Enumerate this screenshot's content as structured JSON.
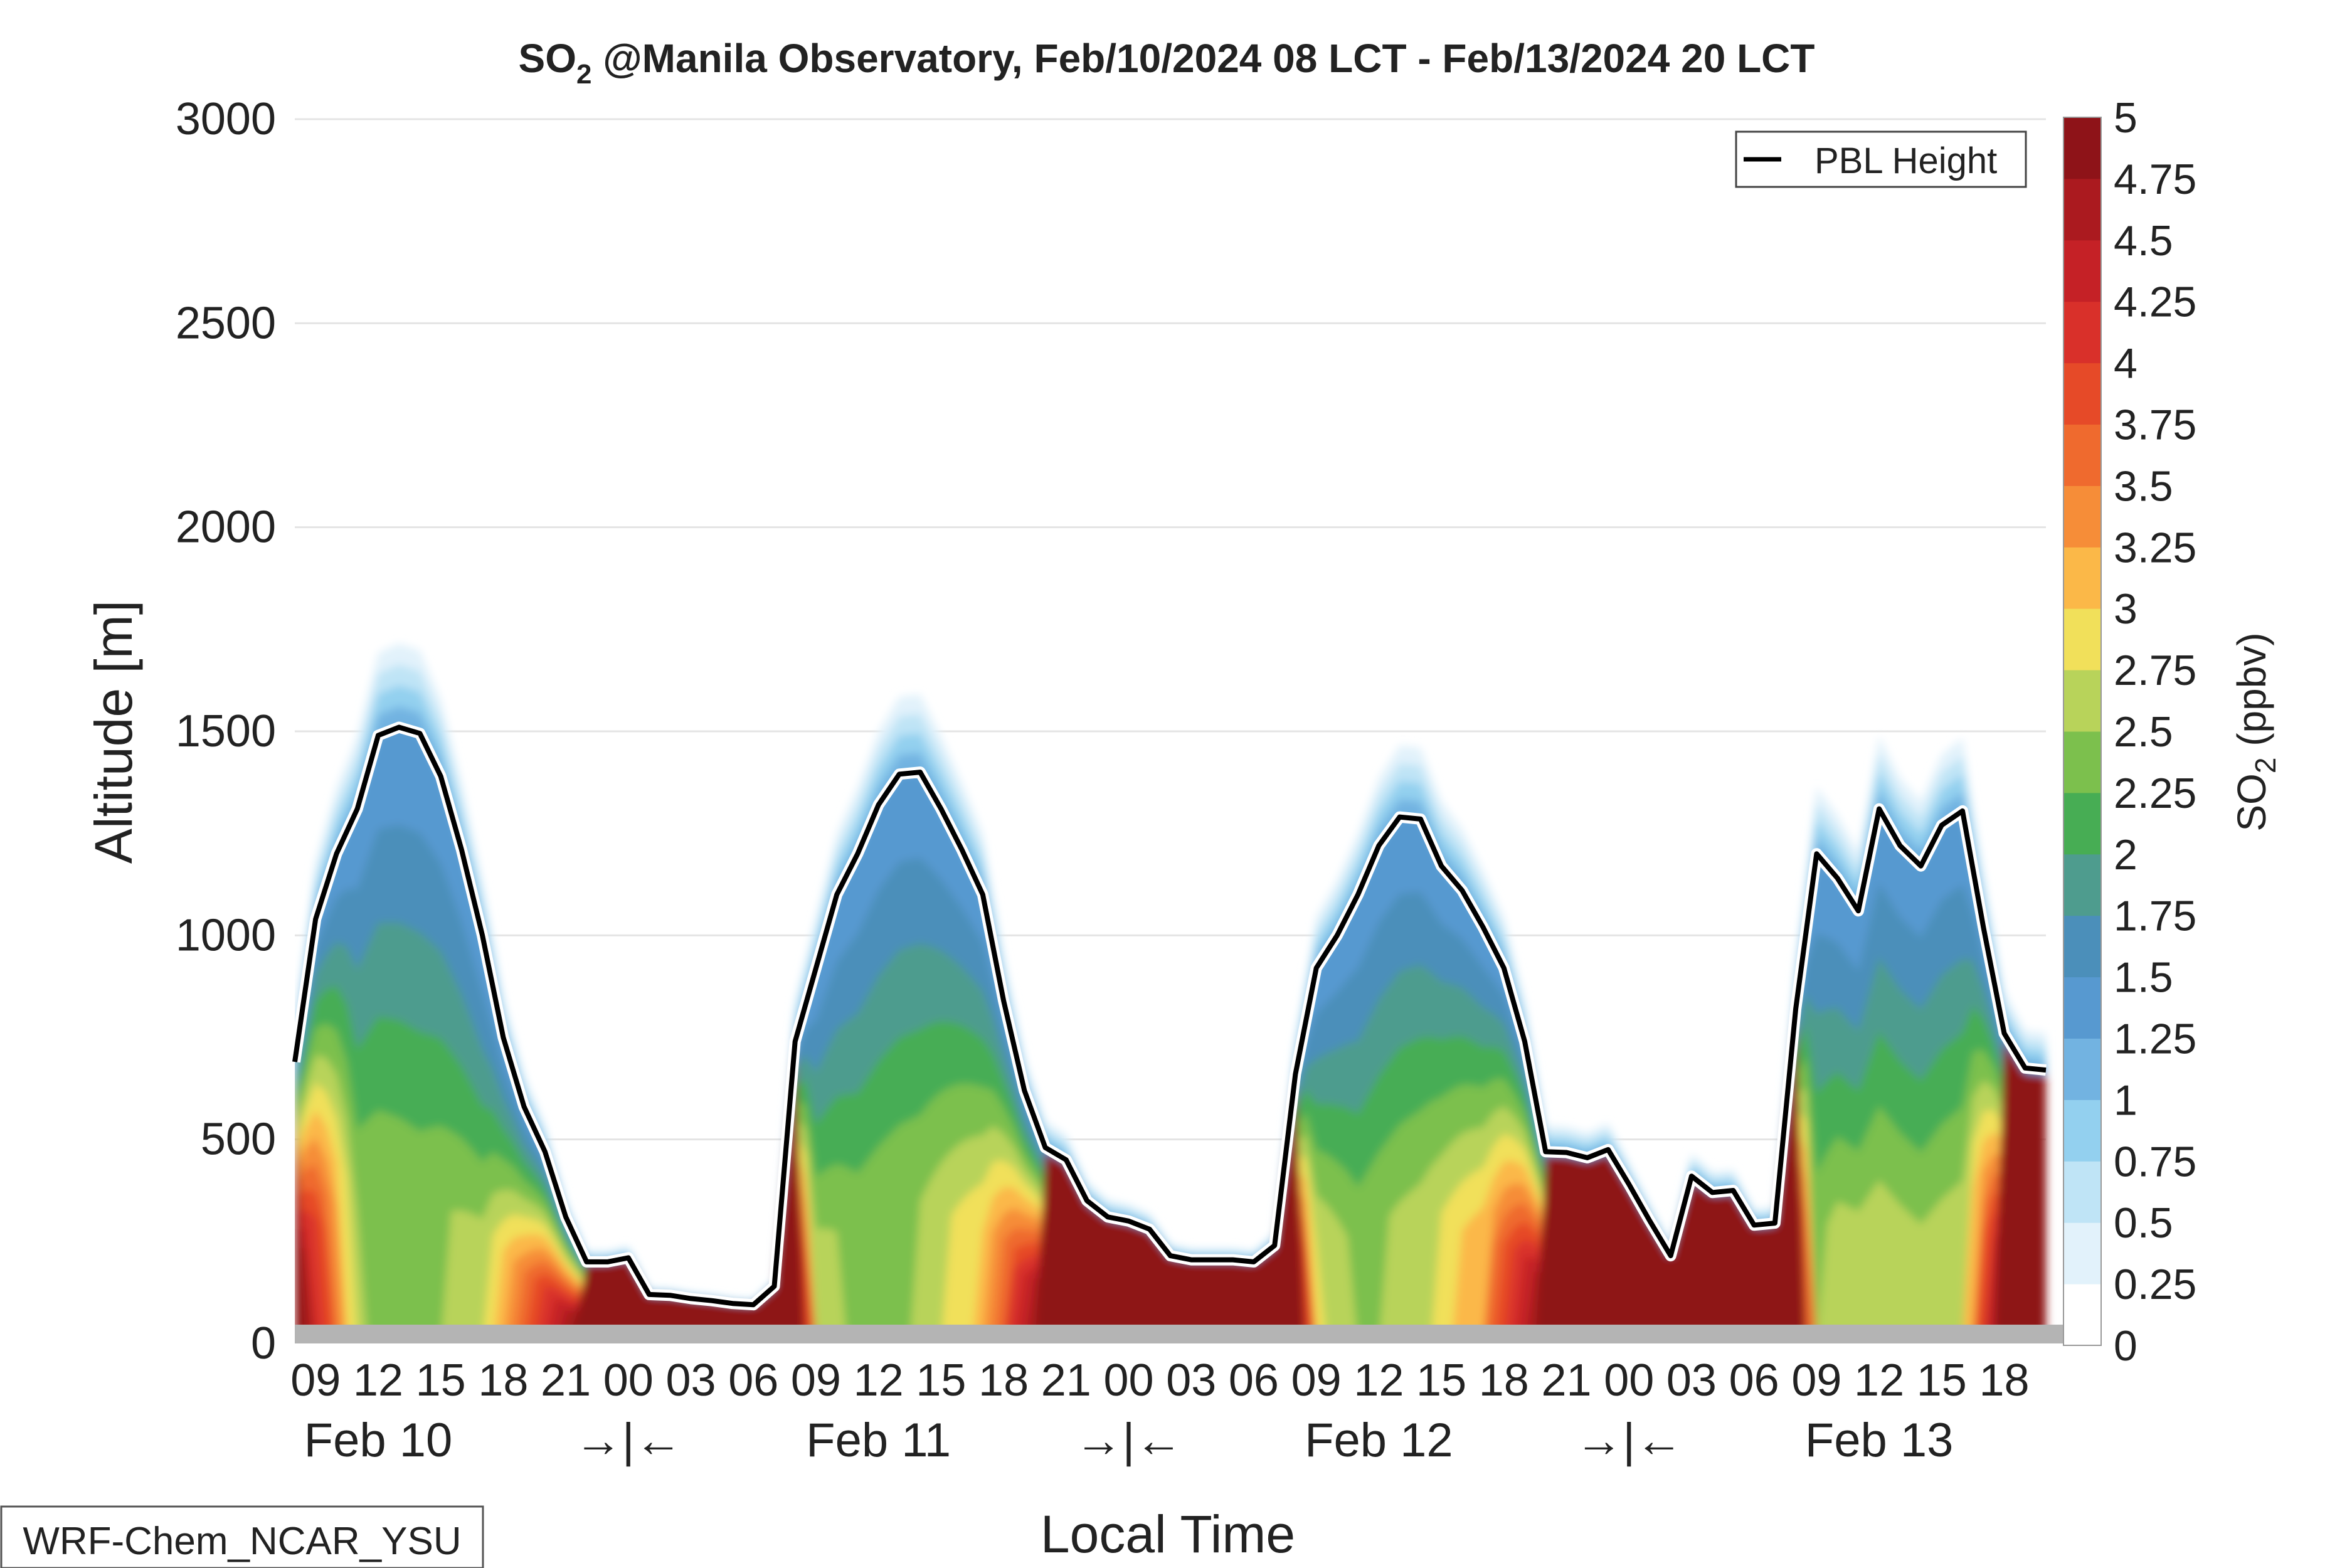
{
  "chart_data": {
    "type": "heatmap",
    "title_main": "SO",
    "title_sub": "2",
    "title_rest": " @Manila Observatory, Feb/10/2024 08 LCT - Feb/13/2024 20 LCT",
    "xlabel": "Local Time",
    "ylabel": "Altitude [m]",
    "ylim": [
      0,
      3000
    ],
    "y_ticks": [
      "0",
      "500",
      "1000",
      "1500",
      "2000",
      "2500",
      "3000"
    ],
    "x_hour_ticks": [
      "09",
      "12",
      "15",
      "18",
      "21",
      "00",
      "03",
      "06",
      "09",
      "12",
      "15",
      "18",
      "21",
      "00",
      "03",
      "06",
      "09",
      "12",
      "15",
      "18",
      "21",
      "00",
      "03",
      "06",
      "09",
      "12",
      "15",
      "18"
    ],
    "x_day_labels": [
      {
        "label": "Feb 10",
        "hour": 12
      },
      {
        "label": "→|←",
        "hour": 24
      },
      {
        "label": "Feb 11",
        "hour": 36
      },
      {
        "label": "→|←",
        "hour": 48
      },
      {
        "label": "Feb 12",
        "hour": 60
      },
      {
        "label": "→|←",
        "hour": 72
      },
      {
        "label": "Feb 13",
        "hour": 84
      }
    ],
    "x_range_hours": [
      8,
      92
    ],
    "colorbar": {
      "label_main": "SO",
      "label_sub": "2",
      "label_rest": " (ppbv)",
      "ticks": [
        "0",
        "0.25",
        "0.5",
        "0.75",
        "1",
        "1.25",
        "1.5",
        "1.75",
        "2",
        "2.25",
        "2.5",
        "2.75",
        "3",
        "3.25",
        "3.5",
        "3.75",
        "4",
        "4.25",
        "4.5",
        "4.75",
        "5"
      ],
      "colors": [
        "#ffffff",
        "#e2f2fb",
        "#bfe4f6",
        "#93d0ef",
        "#72b3e1",
        "#5799d0",
        "#4b8fba",
        "#4e9c8e",
        "#47ad54",
        "#7cc04d",
        "#b8d35a",
        "#f1e05a",
        "#fbb848",
        "#f68d38",
        "#ef6a2e",
        "#e64a28",
        "#d9302a",
        "#c52126",
        "#ab1a1f",
        "#8e1318"
      ]
    },
    "legend": {
      "entry": "PBL Height",
      "placement": "top-right"
    },
    "pbl_height": {
      "x": [
        8,
        9,
        10,
        11,
        12,
        13,
        14,
        15,
        16,
        17,
        18,
        19,
        20,
        21,
        22,
        23,
        24,
        25,
        26,
        27,
        28,
        29,
        30,
        31,
        32,
        33,
        34,
        35,
        36,
        37,
        38,
        39,
        40,
        41,
        42,
        43,
        44,
        45,
        46,
        47,
        48,
        49,
        50,
        51,
        52,
        53,
        54,
        55,
        56,
        57,
        58,
        59,
        60,
        61,
        62,
        63,
        64,
        65,
        66,
        67,
        68,
        69,
        70,
        71,
        72,
        73,
        74,
        75,
        76,
        77,
        78,
        79,
        80,
        81,
        82,
        83,
        84,
        85,
        86,
        87,
        88,
        89,
        90,
        91,
        92
      ],
      "y": [
        690,
        1040,
        1200,
        1310,
        1490,
        1510,
        1495,
        1390,
        1210,
        1000,
        750,
        580,
        470,
        310,
        200,
        200,
        210,
        120,
        118,
        110,
        105,
        98,
        95,
        140,
        740,
        920,
        1100,
        1200,
        1320,
        1395,
        1400,
        1310,
        1210,
        1100,
        840,
        620,
        480,
        450,
        350,
        310,
        300,
        280,
        215,
        205,
        205,
        205,
        200,
        240,
        660,
        920,
        1000,
        1100,
        1220,
        1290,
        1285,
        1170,
        1110,
        1020,
        920,
        740,
        470,
        468,
        455,
        475,
        390,
        300,
        215,
        410,
        370,
        375,
        290,
        295,
        820,
        1200,
        1140,
        1060,
        1310,
        1220,
        1170,
        1270,
        1305,
        1020,
        760,
        675,
        670
      ]
    },
    "surface_concentration_ppbv": {
      "x": [
        8,
        11,
        14,
        17,
        20,
        22,
        24,
        27,
        30,
        32,
        33,
        35,
        38,
        41,
        44,
        47,
        50,
        53,
        56,
        57,
        59,
        62,
        65,
        68,
        71,
        74,
        77,
        80,
        81,
        82,
        84,
        86,
        88,
        90,
        92
      ],
      "y": [
        5,
        2.5,
        2.4,
        2.6,
        4.2,
        5,
        5,
        5,
        5,
        5,
        2.6,
        2.4,
        2.5,
        3,
        5,
        5,
        5,
        5,
        5,
        2.8,
        2.4,
        2.6,
        3.2,
        5,
        5,
        5,
        5,
        5,
        2.4,
        2.6,
        2.6,
        2.5,
        2.6,
        5,
        5
      ]
    },
    "model_label": "WRF-Chem_NCAR_YSU"
  }
}
